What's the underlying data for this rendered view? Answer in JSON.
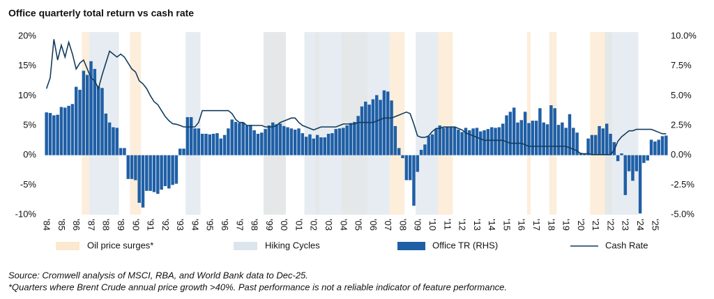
{
  "chart_data": {
    "type": "combo",
    "title": "Office quarterly total return vs cash rate",
    "categories": [
      "'84",
      null,
      null,
      null,
      "'85",
      null,
      null,
      null,
      "'86",
      null,
      null,
      null,
      "'87",
      null,
      null,
      null,
      "'88",
      null,
      null,
      null,
      "'89",
      null,
      null,
      null,
      "'90",
      null,
      null,
      null,
      "'91",
      null,
      null,
      null,
      "'92",
      null,
      null,
      null,
      "'93",
      null,
      null,
      null,
      "'94",
      null,
      null,
      null,
      "'95",
      null,
      null,
      null,
      "'96",
      null,
      null,
      null,
      "'97",
      null,
      null,
      null,
      "'98",
      null,
      null,
      null,
      "'99",
      null,
      null,
      null,
      "'00",
      null,
      null,
      null,
      "'01",
      null,
      null,
      null,
      "'02",
      null,
      null,
      null,
      "'03",
      null,
      null,
      null,
      "'04",
      null,
      null,
      null,
      "'05",
      null,
      null,
      null,
      "'06",
      null,
      null,
      null,
      "'07",
      null,
      null,
      null,
      "'08",
      null,
      null,
      null,
      "'09",
      null,
      null,
      null,
      "'10",
      null,
      null,
      null,
      "'11",
      null,
      null,
      null,
      "'12",
      null,
      null,
      null,
      "'13",
      null,
      null,
      null,
      "'14",
      null,
      null,
      null,
      "'15",
      null,
      null,
      null,
      "'16",
      null,
      null,
      null,
      "'17",
      null,
      null,
      null,
      "'18",
      null,
      null,
      null,
      "'19",
      null,
      null,
      null,
      "'20",
      null,
      null,
      null,
      "'21",
      null,
      null,
      null,
      "'22",
      null,
      null,
      null,
      "'23",
      null,
      null,
      null,
      "'24",
      null,
      null,
      null,
      "'25",
      null,
      null,
      null
    ],
    "shaded_regions": [
      {
        "name": "Oil price surges*",
        "color": "#fbe8cf",
        "spans": [
          {
            "start": 10,
            "end": 11
          },
          {
            "start": 23,
            "end": 25
          },
          {
            "start": 59,
            "end": 64
          },
          {
            "start": 73,
            "end": 73
          },
          {
            "start": 80,
            "end": 81
          },
          {
            "start": 82,
            "end": 86
          },
          {
            "start": 93,
            "end": 96
          },
          {
            "start": 106,
            "end": 109
          },
          {
            "start": 130,
            "end": 130
          },
          {
            "start": 136,
            "end": 137
          },
          {
            "start": 147,
            "end": 152
          }
        ]
      },
      {
        "name": "Hiking Cycles",
        "color": "#dde5ec",
        "spans": [
          {
            "start": 12,
            "end": 19
          },
          {
            "start": 38,
            "end": 41
          },
          {
            "start": 59,
            "end": 64
          },
          {
            "start": 70,
            "end": 92
          },
          {
            "start": 100,
            "end": 105
          },
          {
            "start": 151,
            "end": 159
          }
        ]
      }
    ],
    "series": [
      {
        "name": "Office TR (RHS)",
        "kind": "bar",
        "axis": "y2",
        "color": "#1f5fa6",
        "values": [
          3.6,
          3.55,
          3.35,
          3.4,
          4.05,
          4.0,
          4.15,
          4.3,
          5.75,
          5.5,
          7.1,
          6.75,
          7.9,
          7.25,
          5.8,
          5.65,
          3.5,
          2.75,
          2.35,
          2.3,
          0.6,
          0.6,
          -2.0,
          -2.0,
          -2.1,
          -4.0,
          -4.4,
          -3.0,
          -3.0,
          -3.1,
          -3.25,
          -2.9,
          -2.6,
          -2.8,
          -2.5,
          -2.4,
          0.55,
          0.55,
          3.2,
          3.2,
          2.25,
          2.25,
          1.8,
          1.8,
          1.75,
          1.8,
          1.85,
          1.4,
          1.7,
          2.25,
          3.0,
          2.8,
          2.7,
          2.75,
          2.5,
          2.55,
          2.1,
          1.8,
          1.9,
          2.2,
          2.5,
          2.75,
          2.6,
          2.65,
          2.45,
          2.35,
          2.25,
          2.15,
          2.25,
          1.85,
          1.55,
          1.75,
          1.4,
          1.7,
          1.5,
          1.5,
          1.8,
          1.85,
          2.2,
          2.25,
          2.3,
          2.5,
          2.7,
          2.8,
          3.3,
          4.1,
          4.5,
          4.25,
          4.7,
          5.05,
          4.65,
          5.45,
          5.35,
          4.6,
          2.45,
          0.6,
          -0.25,
          -2.1,
          -2.1,
          -4.25,
          -1.4,
          0.45,
          0.9,
          1.6,
          1.75,
          2.2,
          2.5,
          2.3,
          2.35,
          2.35,
          2.4,
          2.15,
          1.95,
          2.3,
          2.1,
          2.25,
          2.3,
          2.0,
          2.1,
          2.2,
          2.35,
          2.3,
          2.35,
          2.65,
          3.35,
          3.65,
          4.0,
          2.75,
          2.95,
          3.65,
          2.7,
          2.9,
          2.9,
          3.95,
          2.75,
          2.6,
          4.2,
          3.95,
          2.55,
          2.75,
          2.3,
          3.45,
          2.3,
          1.9,
          0.2,
          0.15,
          1.4,
          1.7,
          1.7,
          2.45,
          2.25,
          2.65,
          1.8,
          1.1,
          -0.5,
          0.15,
          -3.35,
          -1.35,
          -2.15,
          -1.35,
          -4.9,
          -0.65,
          -0.45,
          1.3,
          1.15,
          1.3,
          1.6,
          1.65
        ]
      },
      {
        "name": "Cash Rate",
        "kind": "line",
        "axis": "y",
        "color": "#123b5c",
        "values": [
          11.2,
          13,
          19.5,
          16,
          18.5,
          16.5,
          19,
          17,
          14.5,
          15.5,
          16,
          14.5,
          13,
          12.5,
          11.2,
          13.5,
          15.5,
          17.5,
          17,
          16.5,
          17,
          16.5,
          15.5,
          14.5,
          14,
          12.5,
          12,
          11.2,
          10,
          9,
          8.5,
          7.5,
          6.5,
          5.8,
          5.3,
          5.2,
          5,
          4.75,
          4.75,
          4.75,
          4.75,
          5.5,
          7.5,
          7.5,
          7.5,
          7.5,
          7.5,
          7.5,
          7.5,
          7.5,
          7,
          6,
          5.5,
          5.5,
          5,
          5,
          5,
          5,
          5,
          4.75,
          4.75,
          4.75,
          5,
          5.5,
          5.75,
          6,
          6.25,
          6.25,
          5.5,
          5,
          4.75,
          4.5,
          4.25,
          4.5,
          4.75,
          4.75,
          4.75,
          4.75,
          4.75,
          5,
          5.25,
          5.25,
          5.25,
          5.25,
          5.5,
          5.5,
          5.5,
          5.5,
          5.5,
          5.75,
          6,
          6.25,
          6.25,
          6.25,
          6.5,
          6.75,
          7,
          7.25,
          7,
          5.25,
          3.25,
          3,
          3,
          3.25,
          4,
          4.5,
          4.5,
          4.75,
          4.75,
          4.75,
          4.75,
          4.5,
          4.25,
          3.75,
          3.5,
          3.25,
          3,
          2.75,
          2.5,
          2.5,
          2.5,
          2.5,
          2.5,
          2.5,
          2.25,
          2,
          2,
          2,
          2,
          1.75,
          1.5,
          1.5,
          1.5,
          1.5,
          1.5,
          1.5,
          1.5,
          1.5,
          1.5,
          1.5,
          1.5,
          1.25,
          1,
          0.75,
          0.25,
          0.25,
          0.25,
          0.1,
          0.1,
          0.1,
          0.1,
          0.1,
          0.1,
          0.85,
          2.35,
          3.1,
          3.6,
          4.1,
          4.1,
          4.35,
          4.35,
          4.35,
          4.35,
          4.35,
          4.1,
          3.85,
          3.6,
          3.6
        ]
      }
    ],
    "ylim": [
      -10,
      20
    ],
    "yticks": [
      {
        "value": 20,
        "label": "20%"
      },
      {
        "value": 15,
        "label": "15%"
      },
      {
        "value": 10,
        "label": "10%"
      },
      {
        "value": 5,
        "label": "5%"
      },
      {
        "value": 0,
        "label": "0%"
      },
      {
        "value": -5,
        "label": "-5%"
      },
      {
        "value": -10,
        "label": "-10%"
      }
    ],
    "y2lim": [
      -5,
      10
    ],
    "y2ticks": [
      {
        "value": 10,
        "label": "10.0%"
      },
      {
        "value": 7.5,
        "label": "7.5%"
      },
      {
        "value": 5,
        "label": "5.0%"
      },
      {
        "value": 2.5,
        "label": "2.5%"
      },
      {
        "value": 0,
        "label": "0.0%"
      },
      {
        "value": -2.5,
        "label": "-2.5%"
      },
      {
        "value": -5,
        "label": "-5.0%"
      }
    ],
    "source": "Source: Cromwell analysis of MSCI, RBA, and World Bank data to Dec-25.",
    "footnote": "*Quarters where Brent Crude annual price growth >40%. Past performance is not a reliable indicator of feature performance."
  }
}
